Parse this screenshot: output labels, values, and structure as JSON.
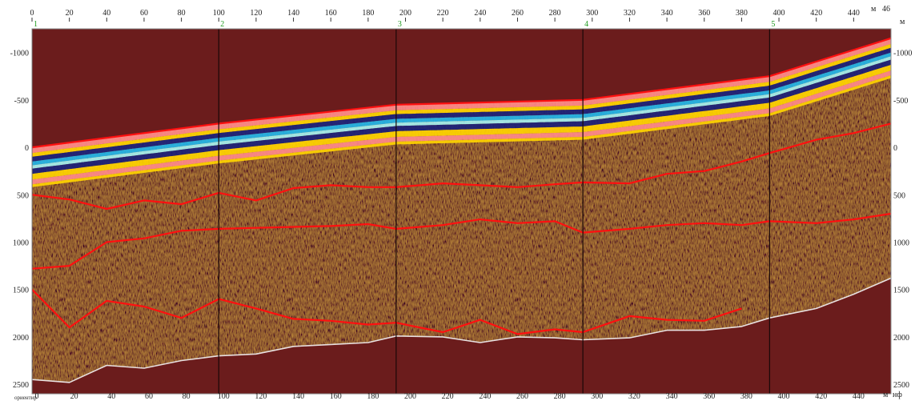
{
  "chart_data": {
    "type": "heatmap",
    "title": "",
    "x_unit": "м",
    "x_axis_top": {
      "ticks": [
        "0",
        "20",
        "40",
        "60",
        "80",
        "100",
        "120",
        "140",
        "160",
        "180",
        "200",
        "220",
        "240",
        "260",
        "280",
        "300",
        "320",
        "340",
        "360",
        "380",
        "400",
        "420",
        "440"
      ],
      "max_label": "46",
      "range": [
        0,
        460
      ]
    },
    "x_axis_bottom": {
      "ticks": [
        "0",
        "20",
        "40",
        "60",
        "80",
        "100",
        "120",
        "140",
        "160",
        "180",
        "200",
        "220",
        "240",
        "260",
        "280",
        "300",
        "320",
        "340",
        "360",
        "380",
        "400",
        "420",
        "440"
      ],
      "unit_label": "м",
      "corner_label": "нф",
      "left_caption": "ориентир"
    },
    "y_axis_left": {
      "ticks": [
        "-1000",
        "-500",
        "0",
        "500",
        "1000",
        "1500",
        "2000",
        "2500"
      ],
      "range": [
        -1250,
        2600
      ]
    },
    "y_axis_right": {
      "ticks": [
        "-1000",
        "-500",
        "0",
        "500",
        "1000",
        "1500",
        "2000",
        "2500"
      ],
      "unit_label": "м"
    },
    "markers": [
      {
        "label": "1",
        "x": 0
      },
      {
        "label": "2",
        "x": 100
      },
      {
        "label": "3",
        "x": 195
      },
      {
        "label": "4",
        "x": 295
      },
      {
        "label": "5",
        "x": 395
      }
    ],
    "horizons": [
      {
        "name": "surface",
        "color": "#ff1010",
        "x": [
          0,
          100,
          195,
          295,
          395,
          460
        ],
        "y": [
          0,
          -250,
          -450,
          -500,
          -750,
          -1150
        ]
      },
      {
        "name": "horizon-1",
        "color": "#ff1010",
        "x": [
          0,
          20,
          40,
          60,
          80,
          100,
          120,
          140,
          160,
          180,
          195,
          220,
          240,
          260,
          280,
          295,
          320,
          340,
          360,
          380,
          395,
          420,
          440,
          460
        ],
        "y": [
          500,
          550,
          650,
          560,
          600,
          480,
          560,
          430,
          400,
          420,
          420,
          380,
          400,
          420,
          390,
          370,
          380,
          280,
          250,
          150,
          60,
          -80,
          -150,
          -250
        ]
      },
      {
        "name": "horizon-2",
        "color": "#ff1010",
        "x": [
          0,
          20,
          40,
          60,
          80,
          100,
          120,
          140,
          160,
          180,
          195,
          220,
          240,
          260,
          280,
          295,
          320,
          340,
          360,
          380,
          395,
          420,
          440,
          460
        ],
        "y": [
          1280,
          1250,
          1000,
          960,
          880,
          860,
          850,
          840,
          830,
          810,
          860,
          820,
          760,
          800,
          780,
          900,
          860,
          820,
          800,
          820,
          780,
          800,
          760,
          700
        ]
      },
      {
        "name": "horizon-3",
        "color": "#ff1010",
        "x": [
          0,
          20,
          40,
          60,
          80,
          100,
          120,
          140,
          160,
          180,
          195,
          220,
          240,
          260,
          280,
          295,
          320,
          340,
          360,
          380
        ],
        "y": [
          1500,
          1900,
          1620,
          1680,
          1800,
          1600,
          1700,
          1810,
          1830,
          1870,
          1850,
          1950,
          1820,
          1970,
          1920,
          1950,
          1780,
          1820,
          1830,
          1700
        ]
      },
      {
        "name": "basement",
        "color": "#e8e0e0",
        "x": [
          0,
          20,
          40,
          60,
          80,
          100,
          120,
          140,
          160,
          180,
          195,
          220,
          240,
          260,
          280,
          295,
          320,
          340,
          360,
          380,
          395,
          420,
          440,
          460
        ],
        "y": [
          2450,
          2480,
          2300,
          2330,
          2250,
          2200,
          2180,
          2100,
          2080,
          2060,
          1990,
          2000,
          2060,
          2000,
          2010,
          2030,
          2010,
          1930,
          1930,
          1890,
          1800,
          1700,
          1550,
          1380
        ]
      }
    ],
    "colormap": [
      "#5a1414",
      "#ffd400",
      "#ff8a8a",
      "#1a1f7a",
      "#21b4e8",
      "#a4f0f0",
      "#7a7a28",
      "#f0c8e8",
      "#6a2a9a",
      "#111111"
    ],
    "background_color": "#6b1c1c",
    "grid": false
  }
}
